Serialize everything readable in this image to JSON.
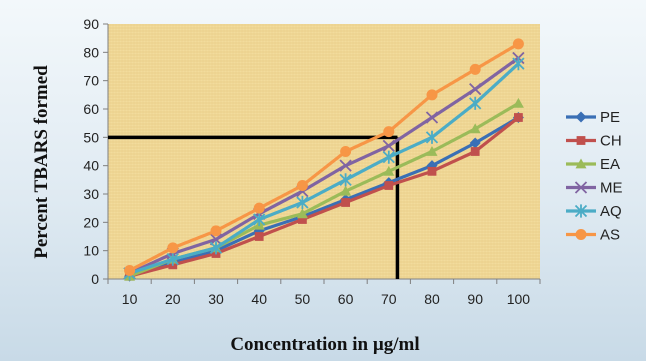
{
  "chart_data": {
    "type": "line",
    "title": "",
    "xlabel": "Concentration in µg/ml",
    "ylabel": "Percent TBARS formed",
    "categories": [
      "10",
      "20",
      "30",
      "40",
      "50",
      "60",
      "70",
      "80",
      "90",
      "100"
    ],
    "ylim": [
      0,
      90
    ],
    "yticks": [
      "0",
      "10",
      "20",
      "30",
      "40",
      "50",
      "60",
      "70",
      "80",
      "90"
    ],
    "grid": false,
    "legend_position": "right",
    "series": [
      {
        "name": "PE",
        "color": "#3a6fb5",
        "marker": "diamond",
        "values": [
          1,
          6,
          10,
          17,
          22,
          28,
          34,
          40,
          48,
          57
        ]
      },
      {
        "name": "CH",
        "color": "#c0504d",
        "marker": "square",
        "values": [
          1,
          5,
          9,
          15,
          21,
          27,
          33,
          38,
          45,
          57
        ]
      },
      {
        "name": "EA",
        "color": "#9bbb59",
        "marker": "triangle",
        "values": [
          1,
          7,
          11,
          19,
          23,
          31,
          38,
          45,
          53,
          62
        ]
      },
      {
        "name": "ME",
        "color": "#8064a2",
        "marker": "x",
        "values": [
          2,
          9,
          14,
          23,
          31,
          40,
          47,
          57,
          67,
          78
        ]
      },
      {
        "name": "AQ",
        "color": "#4bacc6",
        "marker": "star",
        "values": [
          2,
          7,
          11,
          21,
          27,
          35,
          43,
          50,
          62,
          76
        ]
      },
      {
        "name": "AS",
        "color": "#f79646",
        "marker": "circle",
        "values": [
          3,
          11,
          17,
          25,
          33,
          45,
          52,
          65,
          74,
          83
        ]
      }
    ],
    "reference_lines": [
      {
        "axis": "y",
        "value": 50,
        "x_end": 72,
        "color": "#000000"
      },
      {
        "axis": "x",
        "value": 72,
        "y_end": 50,
        "color": "#000000"
      }
    ]
  }
}
